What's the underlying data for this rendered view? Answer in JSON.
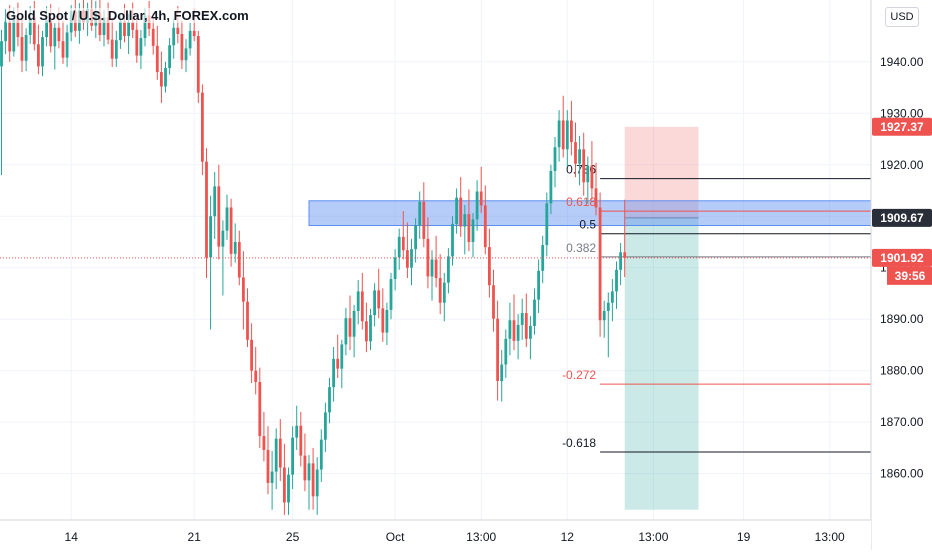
{
  "header": {
    "symbol_title": "Gold Spot / U.S. Dollar, 4h, FOREX.com",
    "currency_button": "USD"
  },
  "colors": {
    "up": "#26a69a",
    "down": "#ef5350",
    "zone": "#5b8def",
    "tp": "#26a69a",
    "sl": "#ef5350",
    "grid": "#f0f3fa",
    "axis_text": "#131722",
    "line_black": "#131722",
    "line_red": "#ef5350"
  },
  "chart_data": {
    "type": "candlestick",
    "title": "Gold Spot / U.S. Dollar, 4h, FOREX.com",
    "ylim": [
      1851,
      1952
    ],
    "y_ticks": [
      1860,
      1870,
      1880,
      1890,
      1900,
      1910,
      1920,
      1930,
      1940
    ],
    "y_tick_labels": [
      "1860.00",
      "1870.00",
      "1880.00",
      "1890.00",
      "1900.00",
      "1910.00",
      "1920.00",
      "1930.00",
      "1940.00"
    ],
    "x_ticks": [
      {
        "label": "14",
        "bar": 17
      },
      {
        "label": "21",
        "bar": 47
      },
      {
        "label": "25",
        "bar": 71
      },
      {
        "label": "Oct",
        "bar": 96
      },
      {
        "label": "13:00",
        "bar": 117
      },
      {
        "label": "12",
        "bar": 138
      },
      {
        "label": "13:00",
        "bar": 159
      },
      {
        "label": "19",
        "bar": 181
      },
      {
        "label": "13:00",
        "bar": 202
      }
    ],
    "price_labels": [
      {
        "value": 1927.37,
        "text": "1927.37",
        "color": "#ef5350"
      },
      {
        "value": 1909.67,
        "text": "1909.67",
        "color": "#2a2e39"
      },
      {
        "value": 1901.92,
        "text": "1901.92",
        "color": "#ef5350"
      }
    ],
    "countdown": "39:56",
    "last_price": 1901.92,
    "supply_zone": {
      "top": 1913.0,
      "bottom": 1908.2,
      "bar_start": 75,
      "bar_end": 217
    },
    "fibonacci": [
      {
        "label": "0.786",
        "value": 1917.3,
        "color": "#131722"
      },
      {
        "label": "0.618",
        "value": 1911.0,
        "color": "#ef5350"
      },
      {
        "label": "0.5",
        "value": 1906.6,
        "color": "#131722"
      },
      {
        "label": "0.382",
        "value": 1902.1,
        "color": "#787b86"
      },
      {
        "label": "-0.272",
        "value": 1877.4,
        "color": "#ef5350"
      },
      {
        "label": "-0.618",
        "value": 1864.2,
        "color": "#131722"
      }
    ],
    "fib_bar_start": 146,
    "position": {
      "entry": 1909.67,
      "stop": 1927.37,
      "target": 1853,
      "bar_start": 152,
      "bar_end": 170
    },
    "candles": [
      [
        1939.1,
        1946.2,
        1918.0,
        1944.0
      ],
      [
        1944.0,
        1950.2,
        1941.5,
        1947.8
      ],
      [
        1947.8,
        1951.0,
        1940.0,
        1942.0
      ],
      [
        1942.0,
        1950.5,
        1941.0,
        1948.5
      ],
      [
        1948.5,
        1951.5,
        1943.0,
        1944.8
      ],
      [
        1944.8,
        1949.0,
        1938.0,
        1940.2
      ],
      [
        1940.2,
        1946.5,
        1938.2,
        1945.2
      ],
      [
        1945.2,
        1950.8,
        1943.5,
        1948.6
      ],
      [
        1948.6,
        1951.8,
        1942.2,
        1943.4
      ],
      [
        1943.4,
        1947.2,
        1937.6,
        1939.1
      ],
      [
        1939.1,
        1946.0,
        1937.2,
        1944.8
      ],
      [
        1944.8,
        1950.8,
        1943.0,
        1948.0
      ],
      [
        1948.0,
        1951.2,
        1941.8,
        1943.0
      ],
      [
        1943.0,
        1947.5,
        1938.5,
        1946.6
      ],
      [
        1946.6,
        1950.5,
        1942.6,
        1944.0
      ],
      [
        1944.0,
        1948.0,
        1939.6,
        1940.8
      ],
      [
        1940.8,
        1947.2,
        1939.0,
        1945.7
      ],
      [
        1945.7,
        1951.0,
        1944.0,
        1949.8
      ],
      [
        1949.8,
        1952.0,
        1944.8,
        1946.0
      ],
      [
        1946.0,
        1951.4,
        1943.5,
        1950.0
      ],
      [
        1950.0,
        1952.0,
        1946.2,
        1947.6
      ],
      [
        1947.6,
        1951.5,
        1945.0,
        1950.3
      ],
      [
        1950.3,
        1952.0,
        1946.0,
        1947.0
      ],
      [
        1947.0,
        1951.8,
        1944.6,
        1949.5
      ],
      [
        1949.5,
        1952.0,
        1944.0,
        1945.2
      ],
      [
        1945.2,
        1950.0,
        1943.0,
        1948.6
      ],
      [
        1948.6,
        1951.5,
        1943.4,
        1944.3
      ],
      [
        1944.3,
        1948.5,
        1939.0,
        1940.6
      ],
      [
        1940.6,
        1946.0,
        1939.0,
        1944.2
      ],
      [
        1944.2,
        1949.2,
        1942.5,
        1947.8
      ],
      [
        1947.8,
        1951.2,
        1943.8,
        1945.0
      ],
      [
        1945.0,
        1949.3,
        1941.5,
        1947.7
      ],
      [
        1947.7,
        1951.5,
        1944.6,
        1946.2
      ],
      [
        1946.2,
        1949.0,
        1939.8,
        1941.2
      ],
      [
        1941.2,
        1946.2,
        1938.6,
        1944.6
      ],
      [
        1944.6,
        1950.4,
        1943.0,
        1949.0
      ],
      [
        1949.0,
        1951.8,
        1945.0,
        1946.4
      ],
      [
        1946.4,
        1949.6,
        1941.4,
        1943.1
      ],
      [
        1943.1,
        1947.0,
        1936.5,
        1938.0
      ],
      [
        1938.0,
        1942.0,
        1932.0,
        1935.2
      ],
      [
        1935.2,
        1940.0,
        1934.0,
        1938.8
      ],
      [
        1938.8,
        1944.6,
        1937.5,
        1943.2
      ],
      [
        1943.2,
        1948.4,
        1940.6,
        1946.6
      ],
      [
        1946.6,
        1950.8,
        1943.6,
        1945.4
      ],
      [
        1945.4,
        1948.0,
        1938.6,
        1940.3
      ],
      [
        1940.3,
        1944.4,
        1938.0,
        1942.6
      ],
      [
        1942.6,
        1947.6,
        1941.2,
        1946.0
      ],
      [
        1946.0,
        1950.4,
        1944.0,
        1945.0
      ],
      [
        1945.0,
        1946.0,
        1932.0,
        1934.0
      ],
      [
        1934.0,
        1935.6,
        1918.0,
        1920.6
      ],
      [
        1920.6,
        1923.2,
        1898.0,
        1902.0
      ],
      [
        1902.0,
        1914.0,
        1888.0,
        1910.0
      ],
      [
        1910.0,
        1918.6,
        1905.6,
        1915.8
      ],
      [
        1915.8,
        1920.0,
        1901.6,
        1904.1
      ],
      [
        1904.1,
        1909.2,
        1894.6,
        1907.2
      ],
      [
        1907.2,
        1914.2,
        1905.4,
        1911.7
      ],
      [
        1911.7,
        1913.4,
        1900.2,
        1902.7
      ],
      [
        1902.7,
        1908.6,
        1901.0,
        1905.0
      ],
      [
        1905.0,
        1907.2,
        1896.6,
        1898.1
      ],
      [
        1898.1,
        1903.2,
        1888.0,
        1893.4
      ],
      [
        1893.4,
        1896.0,
        1884.6,
        1886.0
      ],
      [
        1886.0,
        1889.2,
        1877.6,
        1880.0
      ],
      [
        1880.0,
        1884.6,
        1875.4,
        1877.8
      ],
      [
        1877.8,
        1880.6,
        1865.0,
        1867.3
      ],
      [
        1867.3,
        1872.0,
        1862.4,
        1864.6
      ],
      [
        1864.6,
        1869.2,
        1856.0,
        1858.2
      ],
      [
        1858.2,
        1864.4,
        1853.0,
        1860.4
      ],
      [
        1860.4,
        1868.8,
        1857.0,
        1866.8
      ],
      [
        1866.8,
        1870.6,
        1858.6,
        1861.2
      ],
      [
        1861.2,
        1865.8,
        1852.0,
        1854.4
      ],
      [
        1854.4,
        1861.2,
        1852.0,
        1859.8
      ],
      [
        1859.8,
        1869.2,
        1857.0,
        1867.0
      ],
      [
        1867.0,
        1873.2,
        1864.6,
        1869.3
      ],
      [
        1869.3,
        1872.0,
        1861.4,
        1863.5
      ],
      [
        1863.5,
        1867.8,
        1856.6,
        1858.7
      ],
      [
        1858.7,
        1863.6,
        1853.0,
        1862.0
      ],
      [
        1862.0,
        1865.0,
        1853.0,
        1855.6
      ],
      [
        1855.6,
        1863.2,
        1852.0,
        1860.8
      ],
      [
        1860.8,
        1868.6,
        1858.4,
        1866.6
      ],
      [
        1866.6,
        1873.8,
        1864.2,
        1871.9
      ],
      [
        1871.9,
        1878.6,
        1869.8,
        1876.8
      ],
      [
        1876.8,
        1884.6,
        1874.0,
        1882.3
      ],
      [
        1882.3,
        1887.0,
        1878.6,
        1880.4
      ],
      [
        1880.4,
        1886.0,
        1876.6,
        1885.1
      ],
      [
        1885.1,
        1892.2,
        1883.0,
        1890.2
      ],
      [
        1890.2,
        1894.6,
        1884.0,
        1886.6
      ],
      [
        1886.6,
        1892.8,
        1882.6,
        1891.6
      ],
      [
        1891.6,
        1897.6,
        1889.0,
        1895.4
      ],
      [
        1895.4,
        1899.0,
        1888.0,
        1889.6
      ],
      [
        1889.6,
        1893.2,
        1883.6,
        1885.7
      ],
      [
        1885.7,
        1892.0,
        1884.0,
        1890.8
      ],
      [
        1890.8,
        1897.0,
        1888.6,
        1895.6
      ],
      [
        1895.6,
        1899.8,
        1890.2,
        1892.1
      ],
      [
        1892.1,
        1896.0,
        1885.6,
        1887.4
      ],
      [
        1887.4,
        1893.2,
        1885.0,
        1891.8
      ],
      [
        1891.8,
        1899.0,
        1890.0,
        1897.8
      ],
      [
        1897.8,
        1903.6,
        1895.6,
        1902.0
      ],
      [
        1902.0,
        1907.6,
        1899.6,
        1906.0
      ],
      [
        1906.0,
        1911.0,
        1901.6,
        1903.4
      ],
      [
        1903.4,
        1908.8,
        1898.0,
        1900.0
      ],
      [
        1900.0,
        1905.6,
        1896.6,
        1903.6
      ],
      [
        1903.6,
        1909.6,
        1901.0,
        1908.2
      ],
      [
        1908.2,
        1914.8,
        1905.6,
        1912.8
      ],
      [
        1912.8,
        1916.6,
        1904.0,
        1905.6
      ],
      [
        1905.6,
        1909.8,
        1896.0,
        1898.3
      ],
      [
        1898.3,
        1903.4,
        1893.6,
        1901.6
      ],
      [
        1901.6,
        1906.2,
        1896.2,
        1898.0
      ],
      [
        1898.0,
        1902.6,
        1891.0,
        1893.2
      ],
      [
        1893.2,
        1899.0,
        1889.6,
        1897.1
      ],
      [
        1897.1,
        1903.8,
        1895.0,
        1902.2
      ],
      [
        1902.2,
        1910.0,
        1900.4,
        1908.5
      ],
      [
        1908.5,
        1915.4,
        1906.6,
        1913.6
      ],
      [
        1913.6,
        1917.6,
        1906.0,
        1908.0
      ],
      [
        1908.0,
        1912.2,
        1902.6,
        1910.4
      ],
      [
        1910.4,
        1915.2,
        1903.2,
        1905.0
      ],
      [
        1905.0,
        1910.6,
        1902.0,
        1909.4
      ],
      [
        1909.4,
        1917.0,
        1907.2,
        1914.8
      ],
      [
        1914.8,
        1919.6,
        1910.6,
        1912.1
      ],
      [
        1912.1,
        1916.0,
        1902.6,
        1904.0
      ],
      [
        1904.0,
        1907.6,
        1894.2,
        1896.6
      ],
      [
        1896.6,
        1899.6,
        1887.6,
        1890.1
      ],
      [
        1890.1,
        1893.6,
        1874.2,
        1878.0
      ],
      [
        1878.0,
        1884.0,
        1874.0,
        1881.2
      ],
      [
        1881.2,
        1888.0,
        1878.6,
        1886.2
      ],
      [
        1886.2,
        1893.2,
        1883.0,
        1889.8
      ],
      [
        1889.8,
        1894.8,
        1884.0,
        1885.8
      ],
      [
        1885.8,
        1891.0,
        1882.2,
        1888.9
      ],
      [
        1888.9,
        1894.0,
        1886.0,
        1891.2
      ],
      [
        1891.2,
        1895.0,
        1884.6,
        1886.2
      ],
      [
        1886.2,
        1890.6,
        1882.2,
        1888.7
      ],
      [
        1888.7,
        1896.0,
        1887.0,
        1893.8
      ],
      [
        1893.8,
        1901.6,
        1891.2,
        1899.4
      ],
      [
        1899.4,
        1906.2,
        1897.0,
        1904.4
      ],
      [
        1904.4,
        1914.6,
        1902.2,
        1912.5
      ],
      [
        1912.5,
        1920.0,
        1910.4,
        1918.8
      ],
      [
        1918.8,
        1925.4,
        1915.6,
        1923.4
      ],
      [
        1923.4,
        1930.6,
        1920.6,
        1928.6
      ],
      [
        1928.6,
        1933.4,
        1921.4,
        1923.0
      ],
      [
        1923.0,
        1930.6,
        1919.6,
        1928.6
      ],
      [
        1928.6,
        1932.4,
        1921.8,
        1924.4
      ],
      [
        1924.4,
        1928.2,
        1917.6,
        1920.2
      ],
      [
        1920.2,
        1925.6,
        1916.0,
        1923.0
      ],
      [
        1923.0,
        1926.2,
        1914.0,
        1916.6
      ],
      [
        1916.6,
        1921.6,
        1912.4,
        1919.8
      ],
      [
        1919.8,
        1924.6,
        1913.2,
        1915.4
      ],
      [
        1915.4,
        1920.4,
        1910.2,
        1911.7
      ],
      [
        1911.7,
        1914.6,
        1886.6,
        1889.8
      ],
      [
        1889.8,
        1893.6,
        1886.4,
        1891.6
      ],
      [
        1891.6,
        1895.2,
        1882.6,
        1893.2
      ],
      [
        1893.2,
        1897.8,
        1889.6,
        1895.4
      ],
      [
        1895.4,
        1901.2,
        1892.0,
        1899.6
      ],
      [
        1899.6,
        1904.8,
        1896.6,
        1903.0
      ],
      [
        1903.0,
        1913.2,
        1898.2,
        1901.92
      ]
    ]
  }
}
